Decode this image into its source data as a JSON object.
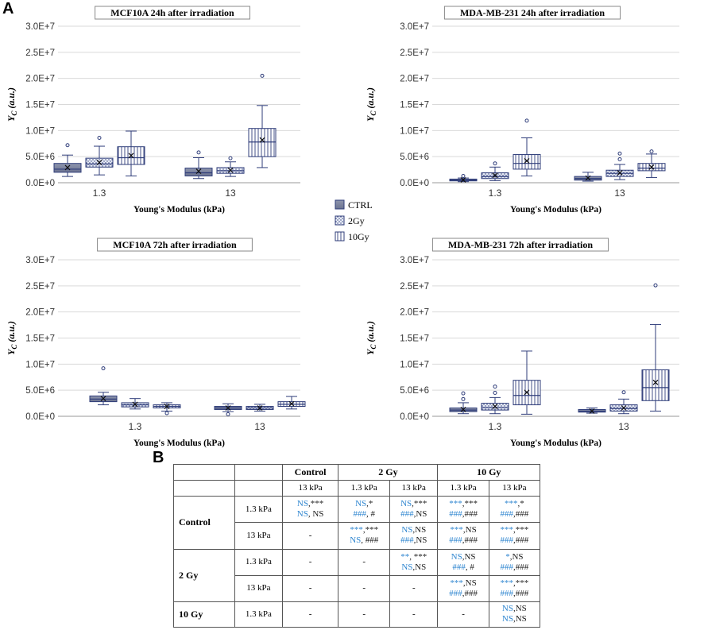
{
  "panel_labels": {
    "a": "A",
    "b": "B"
  },
  "colors": {
    "axis": "#222222",
    "box": "#2f3d7a",
    "grid": "#d9d9d9",
    "sig_blue": "#2f86d0"
  },
  "legend": [
    {
      "label": "CTRL",
      "pattern": "solid"
    },
    {
      "label": "2Gy",
      "pattern": "dots"
    },
    {
      "label": "10Gy",
      "pattern": "vlines"
    }
  ],
  "chart_data": [
    {
      "type": "box",
      "title": "MCF10A 24h after irradiation",
      "xlabel": "Young's Modulus (kPa)",
      "ylabel": "Y_C (a.u.)",
      "ylim": [
        0,
        30000000
      ],
      "yticks": [
        "0.0E+0",
        "5.0E+6",
        "1.0E+7",
        "1.5E+7",
        "2.0E+7",
        "2.5E+7",
        "3.0E+7"
      ],
      "categories": [
        "1.3",
        "13"
      ],
      "series": [
        {
          "name": "CTRL",
          "boxes": [
            {
              "min": 1200000.0,
              "q1": 2000000.0,
              "median": 2600000.0,
              "q3": 3700000.0,
              "max": 5300000.0,
              "mean": 2900000.0,
              "outliers": [
                7200000.0
              ]
            },
            {
              "min": 800000.0,
              "q1": 1300000.0,
              "median": 1900000.0,
              "q3": 2800000.0,
              "max": 4800000.0,
              "mean": 2200000.0,
              "outliers": [
                5800000.0
              ]
            }
          ]
        },
        {
          "name": "2Gy",
          "boxes": [
            {
              "min": 1500000.0,
              "q1": 3000000.0,
              "median": 3600000.0,
              "q3": 4700000.0,
              "max": 7000000.0,
              "mean": 3900000.0,
              "outliers": [
                8600000.0
              ]
            },
            {
              "min": 1200000.0,
              "q1": 1800000.0,
              "median": 2300000.0,
              "q3": 2900000.0,
              "max": 4000000.0,
              "mean": 2400000.0,
              "outliers": [
                4700000.0
              ]
            }
          ]
        },
        {
          "name": "10Gy",
          "boxes": [
            {
              "min": 1300000.0,
              "q1": 3500000.0,
              "median": 4800000.0,
              "q3": 6900000.0,
              "max": 9900000.0,
              "mean": 5200000.0,
              "outliers": []
            },
            {
              "min": 2900000.0,
              "q1": 5000000.0,
              "median": 7800000.0,
              "q3": 10400000.0,
              "max": 14800000.0,
              "mean": 8200000.0,
              "outliers": [
                20500000.0
              ]
            }
          ]
        }
      ]
    },
    {
      "type": "box",
      "title": "MDA-MB-231 24h after irradiation",
      "xlabel": "Young's Modulus (kPa)",
      "ylabel": "Y_C (a.u.)",
      "ylim": [
        0,
        30000000
      ],
      "yticks": [
        "0.0E+0",
        "5.0E+6",
        "1.0E+7",
        "1.5E+7",
        "2.0E+7",
        "2.5E+7",
        "3.0E+7"
      ],
      "categories": [
        "1.3",
        "13"
      ],
      "series": [
        {
          "name": "CTRL",
          "boxes": [
            {
              "min": 200000.0,
              "q1": 350000.0,
              "median": 500000.0,
              "q3": 700000.0,
              "max": 900000.0,
              "mean": 550000.0,
              "outliers": [
                1300000.0
              ]
            },
            {
              "min": 300000.0,
              "q1": 500000.0,
              "median": 800000.0,
              "q3": 1200000.0,
              "max": 2000000.0,
              "mean": 900000.0,
              "outliers": []
            }
          ]
        },
        {
          "name": "2Gy",
          "boxes": [
            {
              "min": 400000.0,
              "q1": 800000.0,
              "median": 1200000.0,
              "q3": 1900000.0,
              "max": 3000000.0,
              "mean": 1400000.0,
              "outliers": [
                3700000.0
              ]
            },
            {
              "min": 600000.0,
              "q1": 1200000.0,
              "median": 1800000.0,
              "q3": 2400000.0,
              "max": 3500000.0,
              "mean": 1900000.0,
              "outliers": [
                4500000.0,
                5600000.0
              ]
            }
          ]
        },
        {
          "name": "10Gy",
          "boxes": [
            {
              "min": 1300000.0,
              "q1": 2600000.0,
              "median": 3700000.0,
              "q3": 5400000.0,
              "max": 8600000.0,
              "mean": 4200000.0,
              "outliers": [
                11900000.0
              ]
            },
            {
              "min": 1000000.0,
              "q1": 2300000.0,
              "median": 2800000.0,
              "q3": 3700000.0,
              "max": 5500000.0,
              "mean": 3000000.0,
              "outliers": [
                6000000.0
              ]
            }
          ]
        }
      ]
    },
    {
      "type": "box",
      "title": "MCF10A 72h after irradiation",
      "xlabel": "Young's Modulus (kPa)",
      "ylabel": "Y_C (a.u.)",
      "ylim": [
        0,
        30000000
      ],
      "yticks": [
        "0.0E+0",
        "5.0E+6",
        "1.0E+7",
        "1.5E+7",
        "2.0E+7",
        "2.5E+7",
        "3.0E+7"
      ],
      "categories": [
        "1.3",
        "13"
      ],
      "series": [
        {
          "name": "CTRL",
          "boxes": [
            {
              "min": 2200000.0,
              "q1": 2800000.0,
              "median": 3300000.0,
              "q3": 3900000.0,
              "max": 4600000.0,
              "mean": 3400000.0,
              "outliers": [
                9200000.0
              ]
            },
            {
              "min": 900000.0,
              "q1": 1300000.0,
              "median": 1600000.0,
              "q3": 1900000.0,
              "max": 2400000.0,
              "mean": 1600000.0,
              "outliers": [
                400000.0
              ]
            }
          ]
        },
        {
          "name": "2Gy",
          "boxes": [
            {
              "min": 1400000.0,
              "q1": 1800000.0,
              "median": 2200000.0,
              "q3": 2600000.0,
              "max": 3400000.0,
              "mean": 2300000.0,
              "outliers": []
            },
            {
              "min": 1000000.0,
              "q1": 1300000.0,
              "median": 1600000.0,
              "q3": 1900000.0,
              "max": 2300000.0,
              "mean": 1600000.0,
              "outliers": []
            }
          ]
        },
        {
          "name": "10Gy",
          "boxes": [
            {
              "min": 1000000.0,
              "q1": 1600000.0,
              "median": 1900000.0,
              "q3": 2200000.0,
              "max": 2600000.0,
              "mean": 1900000.0,
              "outliers": [
                600000.0
              ]
            },
            {
              "min": 1400000.0,
              "q1": 1900000.0,
              "median": 2300000.0,
              "q3": 2800000.0,
              "max": 3800000.0,
              "mean": 2400000.0,
              "outliers": []
            }
          ]
        }
      ]
    },
    {
      "type": "box",
      "title": "MDA-MB-231 72h after irradiation",
      "xlabel": "Young's Modulus (kPa)",
      "ylabel": "Y_C (a.u.)",
      "ylim": [
        0,
        30000000
      ],
      "yticks": [
        "0.0E+0",
        "5.0E+6",
        "1.0E+7",
        "1.5E+7",
        "2.0E+7",
        "2.5E+7",
        "3.0E+7"
      ],
      "categories": [
        "1.3",
        "13"
      ],
      "series": [
        {
          "name": "CTRL",
          "boxes": [
            {
              "min": 500000.0,
              "q1": 900000.0,
              "median": 1200000.0,
              "q3": 1600000.0,
              "max": 2600000.0,
              "mean": 1300000.0,
              "outliers": [
                3300000.0,
                4400000.0
              ]
            },
            {
              "min": 600000.0,
              "q1": 800000.0,
              "median": 1000000.0,
              "q3": 1300000.0,
              "max": 1600000.0,
              "mean": 1000000.0,
              "outliers": []
            }
          ]
        },
        {
          "name": "2Gy",
          "boxes": [
            {
              "min": 500000.0,
              "q1": 1200000.0,
              "median": 1700000.0,
              "q3": 2500000.0,
              "max": 3600000.0,
              "mean": 1900000.0,
              "outliers": [
                4500000.0,
                5700000.0
              ]
            },
            {
              "min": 500000.0,
              "q1": 1000000.0,
              "median": 1500000.0,
              "q3": 2200000.0,
              "max": 3300000.0,
              "mean": 1600000.0,
              "outliers": [
                4600000.0
              ]
            }
          ]
        },
        {
          "name": "10Gy",
          "boxes": [
            {
              "min": 400000.0,
              "q1": 2200000.0,
              "median": 4000000.0,
              "q3": 6900000.0,
              "max": 12500000.0,
              "mean": 4600000.0,
              "outliers": []
            },
            {
              "min": 1000000.0,
              "q1": 3000000.0,
              "median": 5500000.0,
              "q3": 8900000.0,
              "max": 17600000.0,
              "mean": 6500000.0,
              "outliers": [
                25100000.0
              ]
            }
          ]
        }
      ]
    }
  ],
  "table": {
    "header_row1": [
      "",
      "",
      "Control",
      "2 Gy",
      "10 Gy"
    ],
    "header_row2": [
      "13 kPa",
      "1.3 kPa",
      "13 kPa",
      "1.3 kPa",
      "13 kPa"
    ],
    "groups": [
      "Control",
      "2 Gy",
      "10 Gy"
    ],
    "rows": [
      {
        "sub": "1.3 kPa",
        "cells": [
          [
            "NS",
            ",***",
            "NS",
            ", NS"
          ],
          [
            "NS",
            ",*",
            "###",
            ", #"
          ],
          [
            "NS",
            ",***",
            "###",
            ",NS"
          ],
          [
            "***",
            ",***",
            "###",
            ",###"
          ],
          [
            "***",
            ",*",
            "###",
            ",###"
          ]
        ]
      },
      {
        "sub": "13 kPa",
        "cells": [
          "-",
          [
            "***",
            ",***",
            "NS",
            ", ###"
          ],
          [
            "NS",
            ",NS",
            "###",
            ",NS"
          ],
          [
            "***",
            ",NS",
            "###",
            ",###"
          ],
          [
            "***",
            ",***",
            "###",
            ",###"
          ]
        ]
      },
      {
        "sub": "1.3 kPa",
        "cells": [
          "-",
          "-",
          [
            "**",
            ", ***",
            "NS",
            ",NS"
          ],
          [
            "NS",
            ",NS",
            "###",
            ", #"
          ],
          [
            "*",
            ",NS",
            "###",
            ",###"
          ]
        ]
      },
      {
        "sub": "13 kPa",
        "cells": [
          "-",
          "-",
          "-",
          [
            "***",
            ",NS",
            "###",
            ",###"
          ],
          [
            "***",
            ",***",
            "###",
            ",###"
          ]
        ]
      },
      {
        "sub": "1.3 kPa",
        "cells": [
          "-",
          "-",
          "-",
          "-",
          [
            "NS",
            ",NS",
            "NS",
            ",NS"
          ]
        ]
      }
    ]
  }
}
